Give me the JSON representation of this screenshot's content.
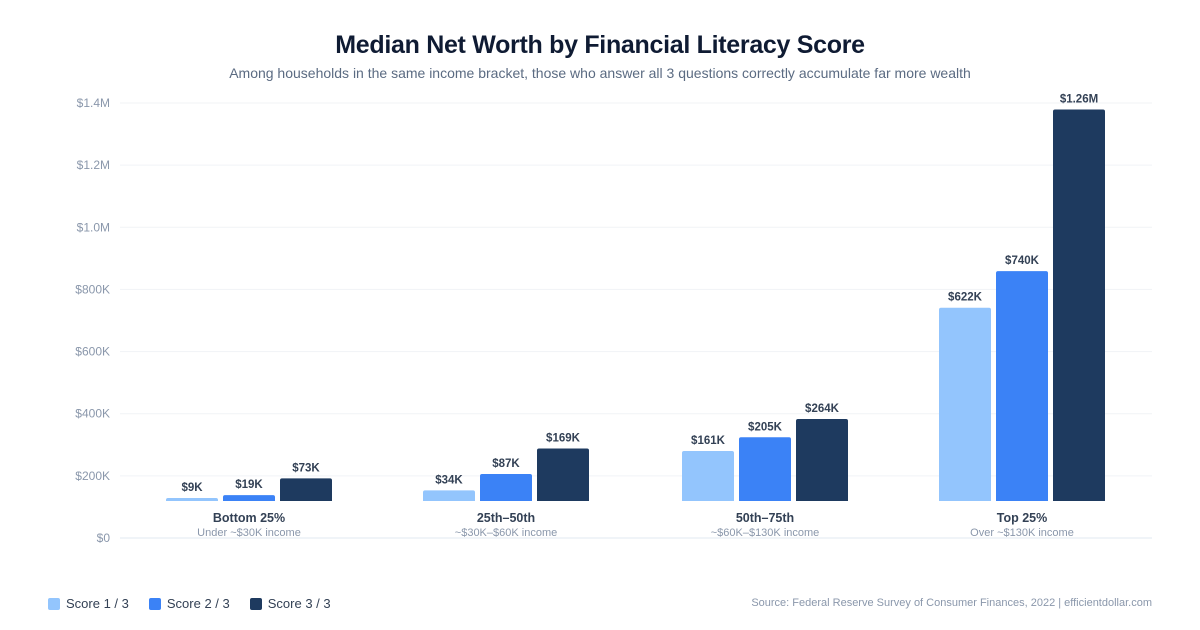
{
  "title": "Median Net Worth by Financial Literacy Score",
  "subtitle": "Among households in the same income bracket, those who answer all 3 questions correctly accumulate far more wealth",
  "source": "Source: Federal Reserve Survey of Consumer Finances, 2022  |  efficientdollar.com",
  "legend": [
    {
      "label": "Score 1 / 3",
      "color": "#93c5fd"
    },
    {
      "label": "Score 2 / 3",
      "color": "#3b82f6"
    },
    {
      "label": "Score 3 / 3",
      "color": "#1e3a5f"
    }
  ],
  "chart_data": {
    "type": "bar",
    "title": "Median Net Worth by Financial Literacy Score",
    "xlabel": "",
    "ylabel": "",
    "ylim": [
      0,
      1400000
    ],
    "yticks": [
      {
        "value": 0,
        "label": "$0"
      },
      {
        "value": 200000,
        "label": "$200K"
      },
      {
        "value": 400000,
        "label": "$400K"
      },
      {
        "value": 600000,
        "label": "$600K"
      },
      {
        "value": 800000,
        "label": "$800K"
      },
      {
        "value": 1000000,
        "label": "$1.0M"
      },
      {
        "value": 1200000,
        "label": "$1.2M"
      },
      {
        "value": 1400000,
        "label": "$1.4M"
      }
    ],
    "grid": true,
    "legend_position": "bottom-left",
    "categories": [
      "Bottom 25%",
      "25th–50th",
      "50th–75th",
      "Top 25%"
    ],
    "category_sublabels": [
      "Under ~$30K income",
      "~$30K–$60K income",
      "~$60K–$130K income",
      "Over ~$130K income"
    ],
    "series": [
      {
        "name": "Score 1 / 3",
        "color": "#93c5fd",
        "values": [
          9000,
          34000,
          161000,
          622000
        ],
        "labels": [
          "$9K",
          "$34K",
          "$161K",
          "$622K"
        ]
      },
      {
        "name": "Score 2 / 3",
        "color": "#3b82f6",
        "values": [
          19000,
          87000,
          205000,
          740000
        ],
        "labels": [
          "$19K",
          "$87K",
          "$205K",
          "$740K"
        ]
      },
      {
        "name": "Score 3 / 3",
        "color": "#1e3a5f",
        "values": [
          73000,
          169000,
          264000,
          1260000
        ],
        "labels": [
          "$73K",
          "$169K",
          "$264K",
          "$1.26M"
        ]
      }
    ]
  }
}
